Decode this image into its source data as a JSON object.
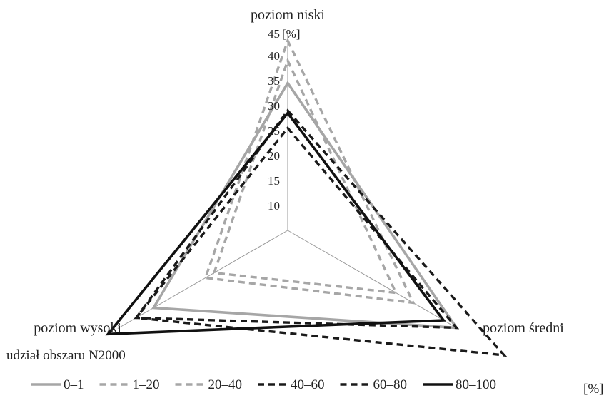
{
  "chart_data": {
    "type": "radar",
    "axes": [
      "poziom niski",
      "poziom średni",
      "poziom wysoki"
    ],
    "unit_label": "[%]",
    "r_ticks": [
      10,
      15,
      20,
      25,
      30,
      35,
      40,
      45
    ],
    "r_range": [
      5,
      45
    ],
    "grid": false,
    "legend_title": "udział obszaru N2000",
    "legend_unit": "[%]",
    "legend_position": "bottom",
    "series": [
      {
        "name": "0–1",
        "values": [
          34.5,
          44,
          36
        ],
        "color": "#a6a6a6",
        "dash": "solid"
      },
      {
        "name": "1–20",
        "values": [
          39,
          30,
          22
        ],
        "color": "#a6a6a6",
        "dash": "dashed"
      },
      {
        "name": "20–40",
        "values": [
          43,
          34,
          24
        ],
        "color": "#a6a6a6",
        "dash": "dashed"
      },
      {
        "name": "40–60",
        "values": [
          25.5,
          44,
          40
        ],
        "color": "#1a1a1a",
        "dash": "dashed"
      },
      {
        "name": "60–80",
        "values": [
          29,
          55,
          40
        ],
        "color": "#1a1a1a",
        "dash": "dashed"
      },
      {
        "name": "80–100",
        "values": [
          28.5,
          41,
          46.5
        ],
        "color": "#111111",
        "dash": "solid"
      }
    ]
  }
}
